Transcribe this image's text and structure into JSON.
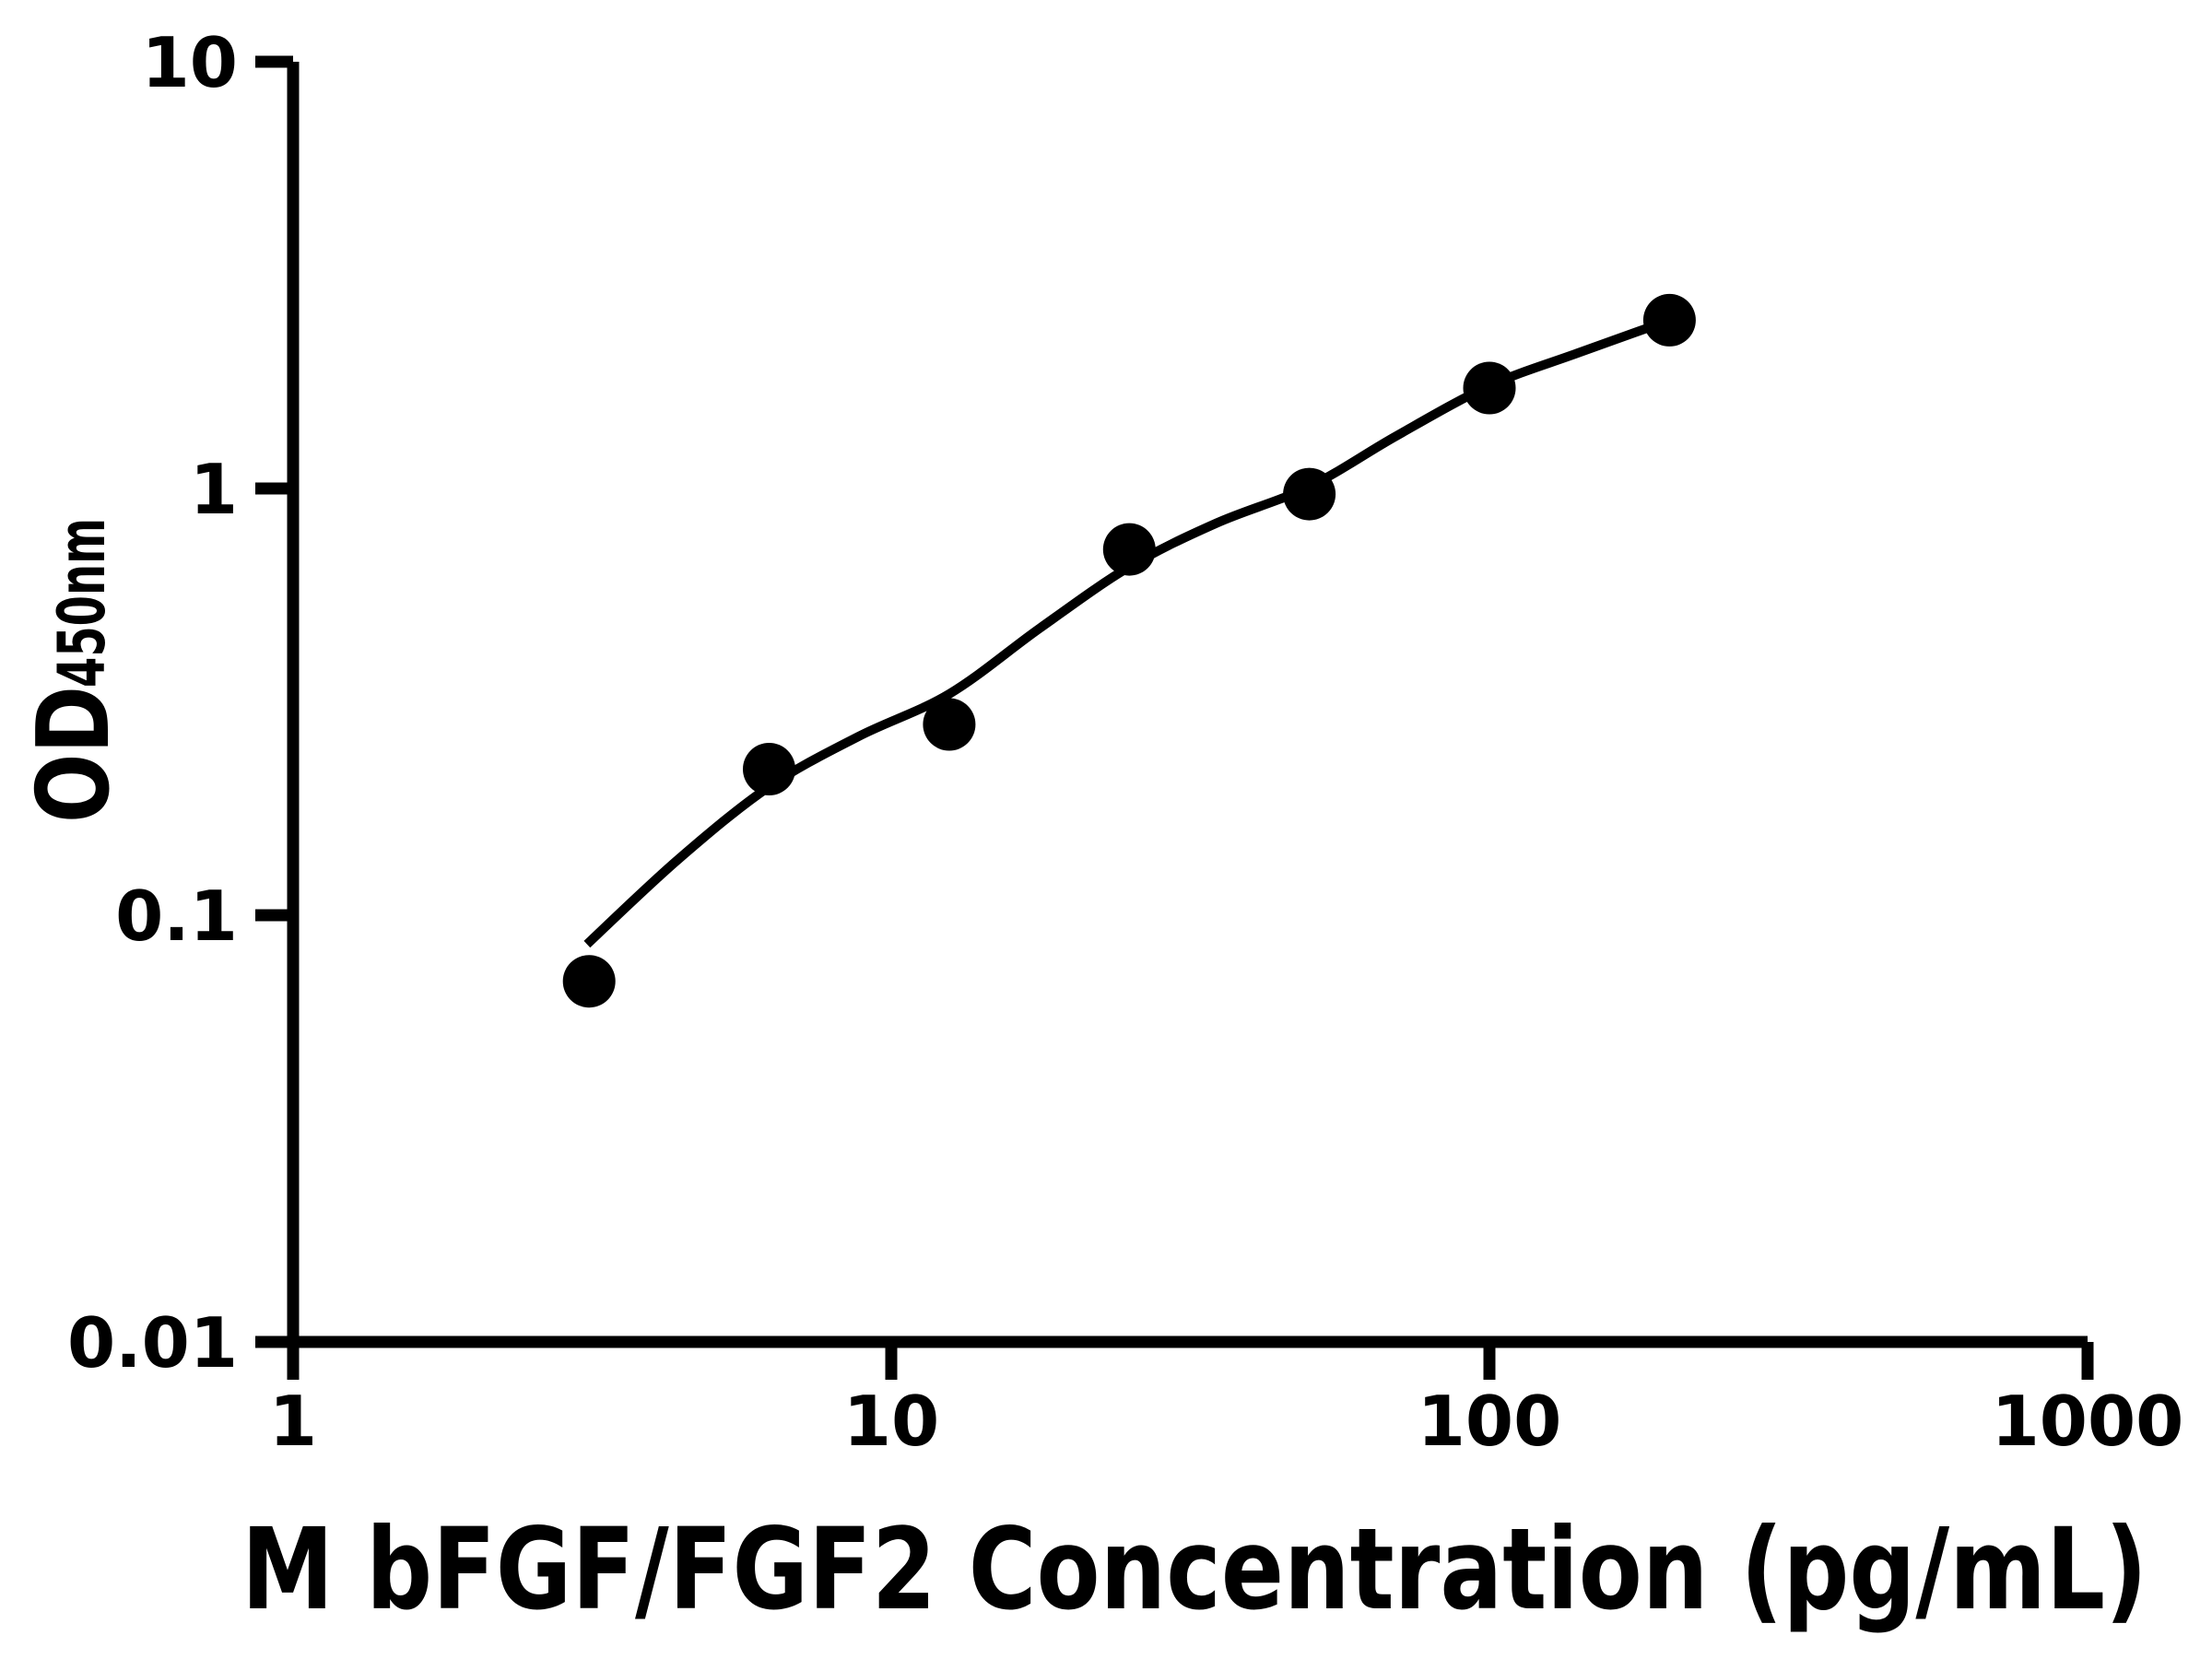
{
  "chart_data": {
    "type": "scatter",
    "title": "",
    "xlabel": "M bFGF/FGF2 Concentration (pg/mL)",
    "ylabel": "OD",
    "ylabel_subscript": "450nm",
    "x_scale": "log",
    "y_scale": "log",
    "xlim": [
      1,
      1000
    ],
    "ylim": [
      0.01,
      10
    ],
    "grid": false,
    "legend": "none",
    "x_ticks": [
      1,
      10,
      100,
      1000
    ],
    "x_tick_labels": [
      "1",
      "10",
      "100",
      "1000"
    ],
    "y_ticks": [
      10,
      1,
      0.1,
      0.01
    ],
    "y_tick_labels": [
      "10",
      "1",
      "0.1",
      "0.01"
    ],
    "series": [
      {
        "name": "standard-curve-points",
        "marker": "filled-circle",
        "x": [
          3.125,
          6.25,
          12.5,
          25,
          50,
          100,
          200
        ],
        "y": [
          0.07,
          0.22,
          0.28,
          0.72,
          0.97,
          1.72,
          2.48
        ]
      }
    ],
    "fit_curve": {
      "name": "4pl-fit-curve",
      "points": [
        [
          3.1,
          0.0855
        ],
        [
          4.4,
          0.135
        ],
        [
          6.25,
          0.2
        ],
        [
          8.8,
          0.262
        ],
        [
          12.5,
          0.33
        ],
        [
          17.7,
          0.47
        ],
        [
          25,
          0.655
        ],
        [
          35,
          0.83
        ],
        [
          50,
          1.01
        ],
        [
          70,
          1.33
        ],
        [
          100,
          1.74
        ],
        [
          141,
          2.08
        ],
        [
          200,
          2.48
        ]
      ]
    },
    "colors": {
      "foreground": "#000000",
      "background": "#ffffff"
    }
  }
}
